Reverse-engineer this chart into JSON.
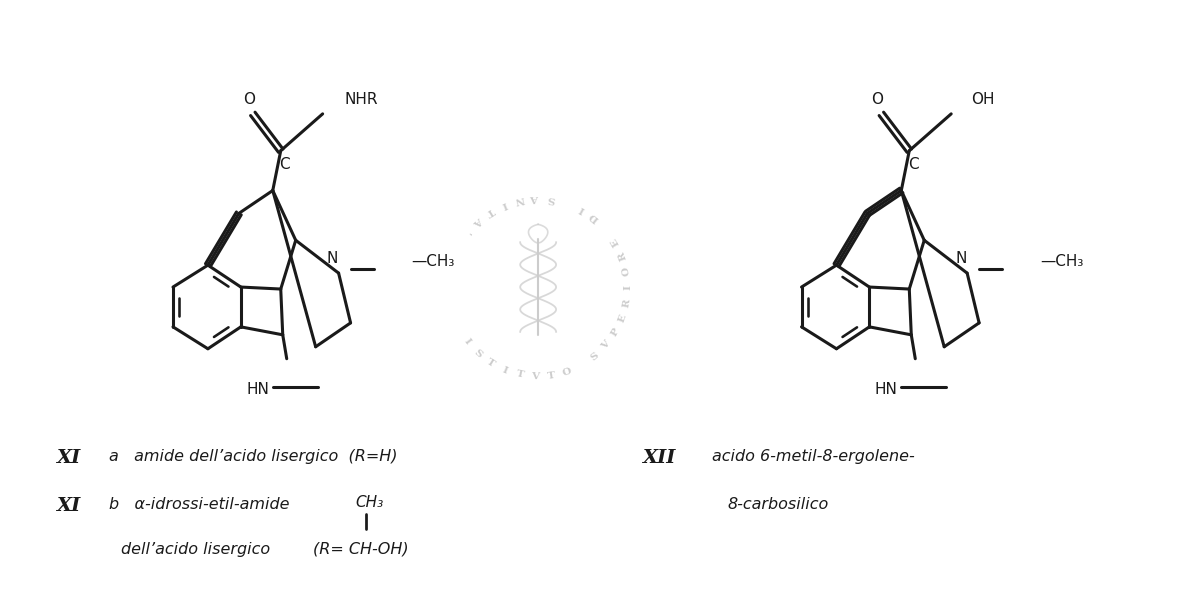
{
  "background_color": "#ffffff",
  "line_color": "#1a1a1a",
  "line_width": 2.2,
  "fig_width": 12.0,
  "fig_height": 5.95,
  "dpi": 100,
  "watermark_color": "#cccccc",
  "mol1": {
    "label1": "a   amide dell’acido lisergico  (R=H)",
    "label2a": "b   α-idrossi-etil-amide",
    "label2b": "        dell’acido lisergico",
    "label2c": "CH₃",
    "label2d": "(R= CH-OH)",
    "O": "O",
    "NHR": "NHR",
    "C": "C",
    "N": "N",
    "CH3": "—CH₃",
    "HN": "HN"
  },
  "mol2": {
    "label1": "  acido 6-metil-8-ergolene-",
    "label2": "        8-carbosilico",
    "O": "O",
    "OH": "OH",
    "C": "C",
    "N": "N",
    "CH3": "—CH₃",
    "HN": "HN"
  }
}
